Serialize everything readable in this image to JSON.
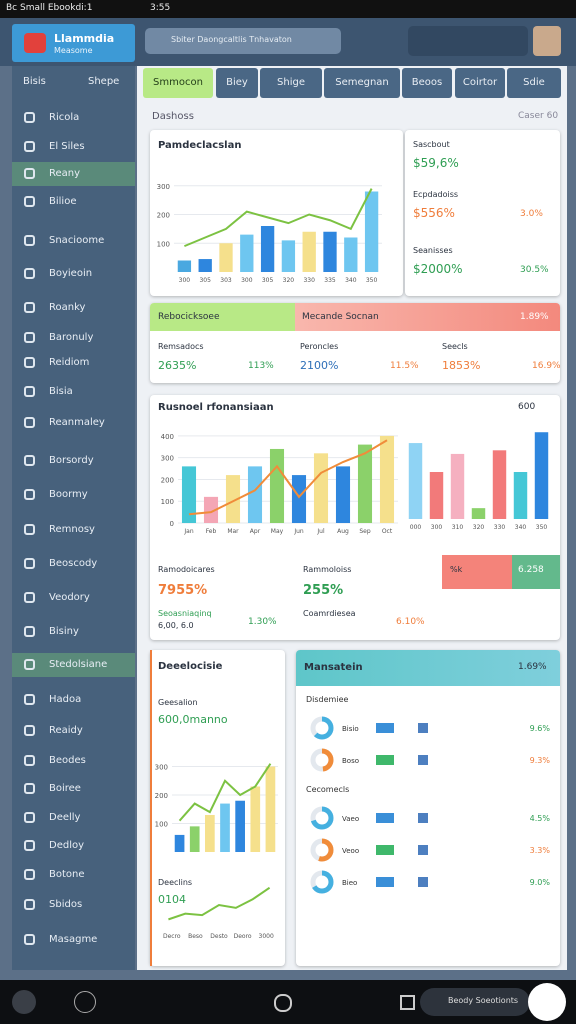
{
  "status_bar": {
    "left": "Bc Small Ebookdi:1",
    "time": "3:55"
  },
  "header": {
    "app_name": "Llammdia",
    "app_sub": "Measome",
    "search": "Sbiter Daongcaltlis Tnhavaton"
  },
  "sidebar": {
    "top_left": "Bisis",
    "top_right": "Shepe",
    "items": [
      "Ricola",
      "El Siles",
      "Reany",
      "Bilioe",
      "Snacioome",
      "Boyieoin",
      "Roanky",
      "Baronuly",
      "Reidiom",
      "Bisia",
      "Reanmaley",
      "Borsordy",
      "Boormy",
      "Remnosy",
      "Beoscody",
      "Veodory",
      "Bisiny",
      "Stedolsiane",
      "Hadoa",
      "Reaidy",
      "Beodes",
      "Boiree",
      "Deelly",
      "Dedloy",
      "Botone",
      "Sbidos",
      "Masagme"
    ]
  },
  "tabs": [
    "Smmocon",
    "Biey",
    "Shige",
    "Semegnan",
    "Beoos",
    "Coirtor",
    "Sdie"
  ],
  "section": {
    "label": "Dashoss",
    "right": "Caser 60"
  },
  "card_a": {
    "title": "Pamdeclacslan",
    "chart": {
      "ylim": [
        0,
        320
      ],
      "yticks": [
        100,
        200,
        300
      ],
      "categories": [
        "300",
        "305",
        "303",
        "300",
        "305",
        "320",
        "330",
        "335",
        "340",
        "350"
      ],
      "bars": [
        40,
        45,
        100,
        130,
        160,
        110,
        140,
        140,
        120,
        280
      ],
      "bar_colors": [
        "#4aa8e0",
        "#2e86de",
        "#f5e08c",
        "#6ec6f0",
        "#2e86de",
        "#6ec6f0",
        "#f5e08c",
        "#2e86de",
        "#6ec6f0",
        "#6ec6f0"
      ],
      "line": [
        90,
        120,
        150,
        210,
        190,
        170,
        200,
        180,
        150,
        290
      ],
      "line_color": "#7cc242"
    }
  },
  "card_stats": [
    {
      "label": "Sascbout",
      "value": "$59,6%"
    },
    {
      "label": "Ecpdadoiss",
      "value": "$556%",
      "change": "3.0%"
    },
    {
      "label": "Seanisses",
      "value": "$2000%",
      "change": "30.5%"
    }
  ],
  "split_bar": {
    "left": "Rebocicksoee",
    "right": "Mecande Socnan",
    "right_value": "1.89%"
  },
  "row_stats": [
    {
      "label": "Remsadocs",
      "value": "2635%",
      "change": "113%"
    },
    {
      "label": "Peroncles",
      "value": "2100%",
      "change": "11.5%"
    },
    {
      "label": "Seecls",
      "value": "1853%",
      "change": "16.9%"
    }
  ],
  "card_b": {
    "title": "Rusnoel rfonansiaan",
    "right": "600",
    "chart": {
      "ylim": [
        0,
        450
      ],
      "yticks": [
        0,
        100,
        200,
        300,
        400
      ],
      "categories": [
        "Jan",
        "Feb",
        "Mar",
        "Apr",
        "May",
        "Jun",
        "Jul",
        "Aug",
        "Sep",
        "Oct"
      ],
      "bars": [
        260,
        120,
        220,
        260,
        340,
        220,
        320,
        260,
        360,
        400
      ],
      "bar_colors": [
        "#45c7d6",
        "#f4a6b5",
        "#f5e08c",
        "#6ec6f0",
        "#8bd16a",
        "#2e86de",
        "#f5e08c",
        "#2e86de",
        "#8bd16a",
        "#f5e08c"
      ],
      "line": [
        40,
        50,
        100,
        150,
        260,
        120,
        230,
        280,
        320,
        380
      ],
      "line_color": "#f08c3a"
    },
    "chart2": {
      "ylim": [
        0,
        260
      ],
      "categories": [
        "000",
        "300",
        "310",
        "320",
        "330",
        "340",
        "350"
      ],
      "bars": [
        210,
        130,
        180,
        30,
        190,
        130,
        240
      ],
      "bar_colors": [
        "#8fd3f4",
        "#f27a7a",
        "#f5b0c0",
        "#8bd16a",
        "#f27a7a",
        "#45c7d6",
        "#2e86de"
      ]
    },
    "stats": [
      {
        "label": "Ramodoicares",
        "value": "7955%",
        "sub": "Seoasniaqinq",
        "sub_value": "6,00, 6.0",
        "change": "1.30%"
      },
      {
        "label": "Rammoloiss",
        "value": "255%",
        "sub": "Coamrdiesea",
        "change": "6.10%"
      }
    ],
    "badge": {
      "left": "%k",
      "right": "6.258"
    }
  },
  "card_c": {
    "title": "Deeelocisie",
    "label": "Geesalion",
    "value": "600,0manno",
    "chart": {
      "ylim": [
        0,
        330
      ],
      "yticks": [
        100,
        200,
        300
      ],
      "bars": [
        60,
        90,
        130,
        170,
        180,
        230,
        300
      ],
      "bar_colors": [
        "#2e86de",
        "#8bd16a",
        "#f5e08c",
        "#6ec6f0",
        "#2e86de",
        "#f5e08c",
        "#f5e08c"
      ],
      "line": [
        110,
        170,
        140,
        250,
        200,
        230,
        310
      ],
      "line_color": "#7cc242"
    },
    "sub_label": "Deeclins",
    "sub_value": "0104",
    "chart2": {
      "ylim": [
        0,
        160
      ],
      "categories": [
        "Decro",
        "Beso",
        "Desto",
        "Deoro",
        "3000"
      ],
      "line": [
        30,
        50,
        45,
        80,
        70,
        100,
        140
      ],
      "line_color": "#7cc242"
    }
  },
  "card_d": {
    "title": "Mansatein",
    "title_value": "1.69%",
    "groups": [
      {
        "label": "Disdemiee",
        "rows": [
          {
            "share": 62,
            "name": "Bisio",
            "value": "9.6%"
          },
          {
            "share": 48,
            "name": "Boso",
            "value": "9.3%"
          }
        ]
      },
      {
        "label": "Cecomecls",
        "rows": [
          {
            "share": 70,
            "name": "Vaeo",
            "value": "4.5%"
          },
          {
            "share": 55,
            "name": "Veoo",
            "value": "3.3%"
          },
          {
            "share": 66,
            "name": "Bieo",
            "value": "9.0%"
          }
        ]
      }
    ]
  },
  "bottom_bar": {
    "notice": "Beody Soeotionts"
  }
}
